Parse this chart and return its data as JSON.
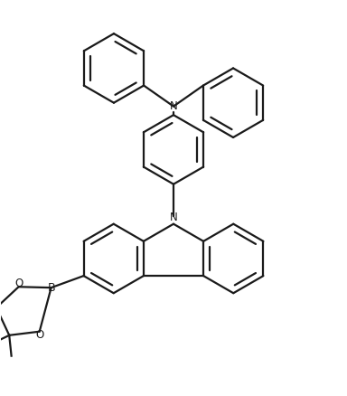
{
  "bg_color": "#ffffff",
  "line_color": "#1a1a1a",
  "line_width": 1.6,
  "figsize": [
    3.84,
    4.38
  ],
  "dpi": 100,
  "xlim": [
    -4.5,
    5.5
  ],
  "ylim": [
    -4.5,
    6.0
  ]
}
